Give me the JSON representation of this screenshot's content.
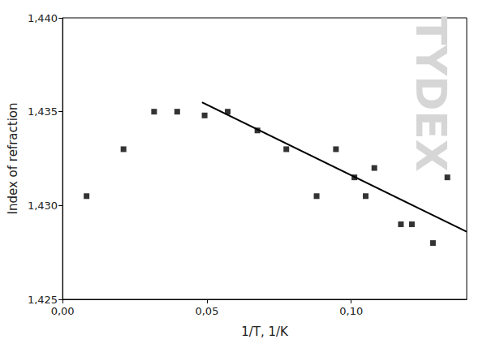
{
  "chart_data": {
    "type": "scatter",
    "x_label": "1/T, 1/K",
    "y_label": "Index of refraction",
    "annotations": [
      "TYDEX"
    ],
    "xlim": [
      0,
      0.14
    ],
    "ylim": [
      1.425,
      1.44
    ],
    "xticks": [
      {
        "value": 0,
        "label": "0,00"
      },
      {
        "value": 0.05,
        "label": "0,05"
      },
      {
        "value": 0.1,
        "label": "0,10"
      }
    ],
    "yticks": [
      {
        "value": 1.425,
        "label": "1,425"
      },
      {
        "value": 1.43,
        "label": "1,430"
      },
      {
        "value": 1.435,
        "label": "1,435"
      },
      {
        "value": 1.44,
        "label": "1,440"
      }
    ],
    "grid": false,
    "series": [
      {
        "type": "scatter",
        "color": "#000000",
        "marker": "square",
        "x": [
          0.0083,
          0.0211,
          0.0317,
          0.0397,
          0.0492,
          0.0572,
          0.0675,
          0.0775,
          0.088,
          0.0947,
          0.1011,
          0.105,
          0.108,
          0.1172,
          0.121,
          0.1283,
          0.1333
        ],
        "values": [
          1.4305,
          1.433,
          1.435,
          1.435,
          1.4348,
          1.435,
          1.434,
          1.433,
          1.4305,
          1.433,
          1.4315,
          1.4305,
          1.432,
          1.429,
          1.429,
          1.428,
          1.4315
        ]
      },
      {
        "type": "line",
        "color": "#000000",
        "line_style": "solid",
        "x": [
          0.0483,
          0.14
        ],
        "values": [
          1.4355,
          1.4286
        ]
      }
    ]
  }
}
